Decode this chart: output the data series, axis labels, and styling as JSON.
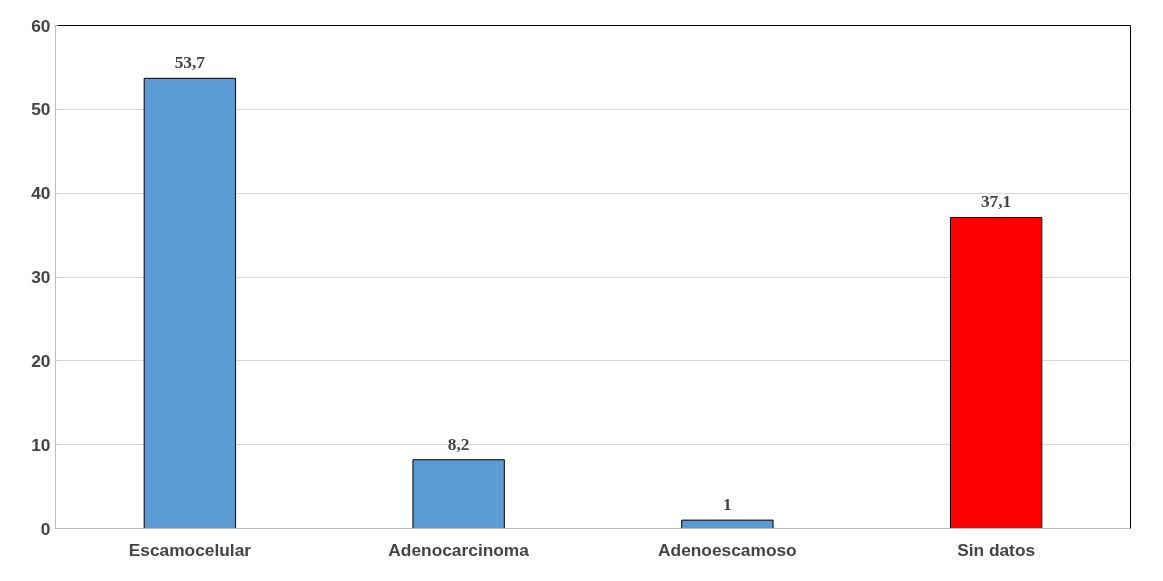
{
  "chart_data": {
    "type": "bar",
    "categories": [
      "Escamocelular",
      "Adenocarcinoma",
      "Adenoescamoso",
      "Sin datos"
    ],
    "values": [
      53.7,
      8.2,
      1,
      37.1
    ],
    "colors": [
      "#5b9bd5",
      "#5b9bd5",
      "#5b9bd5",
      "#ff0000"
    ],
    "value_labels": [
      "53,7",
      "8,2",
      "1",
      "37,1"
    ],
    "ylim": [
      0,
      60
    ],
    "yticks": [
      0,
      10,
      20,
      30,
      40,
      50,
      60
    ],
    "grid": "y"
  }
}
